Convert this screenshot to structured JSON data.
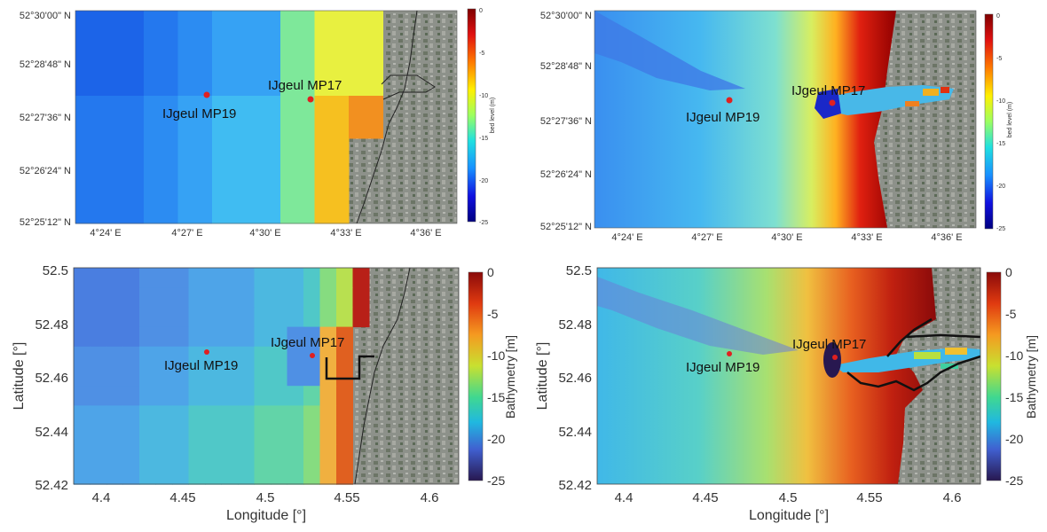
{
  "top_left": {
    "y_ticks": [
      "52°30'00\" N",
      "52°28'48\" N",
      "52°27'36\" N",
      "52°26'24\" N",
      "52°25'12\" N"
    ],
    "x_ticks": [
      "4°24' E",
      "4°27' E",
      "4°30' E",
      "4°33' E",
      "4°36' E"
    ],
    "colorbar_label": "bed level (m)",
    "colorbar_ticks": [
      "0",
      "-5",
      "-10",
      "-15",
      "-20",
      "-25"
    ],
    "stations": [
      {
        "name": "IJgeul MP19"
      },
      {
        "name": "IJgeul MP17"
      }
    ]
  },
  "top_right": {
    "y_ticks": [
      "52°30'00\" N",
      "52°28'48\" N",
      "52°27'36\" N",
      "52°26'24\" N",
      "52°25'12\" N"
    ],
    "x_ticks": [
      "4°24' E",
      "4°27' E",
      "4°30' E",
      "4°33' E",
      "4°36' E"
    ],
    "colorbar_label": "bed level (m)",
    "colorbar_ticks": [
      "0",
      "-5",
      "-10",
      "-15",
      "-20",
      "-25"
    ],
    "stations": [
      {
        "name": "IJgeul MP19"
      },
      {
        "name": "IJgeul MP17"
      }
    ]
  },
  "bottom_left": {
    "y_ticks": [
      "52.5",
      "52.48",
      "52.46",
      "52.44",
      "52.42"
    ],
    "x_ticks": [
      "4.4",
      "4.45",
      "4.5",
      "4.55",
      "4.6"
    ],
    "xlabel": "Longitude [°]",
    "ylabel": "Latitude [°]",
    "colorbar_label": "Bathymetry [m]",
    "colorbar_ticks": [
      "0",
      "-5",
      "-10",
      "-15",
      "-20",
      "-25"
    ],
    "stations": [
      {
        "name": "IJgeul MP19"
      },
      {
        "name": "IJgeul MP17"
      }
    ]
  },
  "bottom_right": {
    "y_ticks": [
      "52.5",
      "52.48",
      "52.46",
      "52.44",
      "52.42"
    ],
    "x_ticks": [
      "4.4",
      "4.45",
      "4.5",
      "4.55",
      "4.6"
    ],
    "xlabel": "Longitude [°]",
    "ylabel": "Latitude [°]",
    "colorbar_label": "Bathymetry [m]",
    "colorbar_ticks": [
      "0",
      "-5",
      "-10",
      "-15",
      "-20",
      "-25"
    ],
    "stations": [
      {
        "name": "IJgeul MP19"
      },
      {
        "name": "IJgeul MP17"
      }
    ]
  },
  "colors": {
    "station_marker": "#e02020",
    "coastline": "#111111",
    "land": "#8a8f86"
  }
}
